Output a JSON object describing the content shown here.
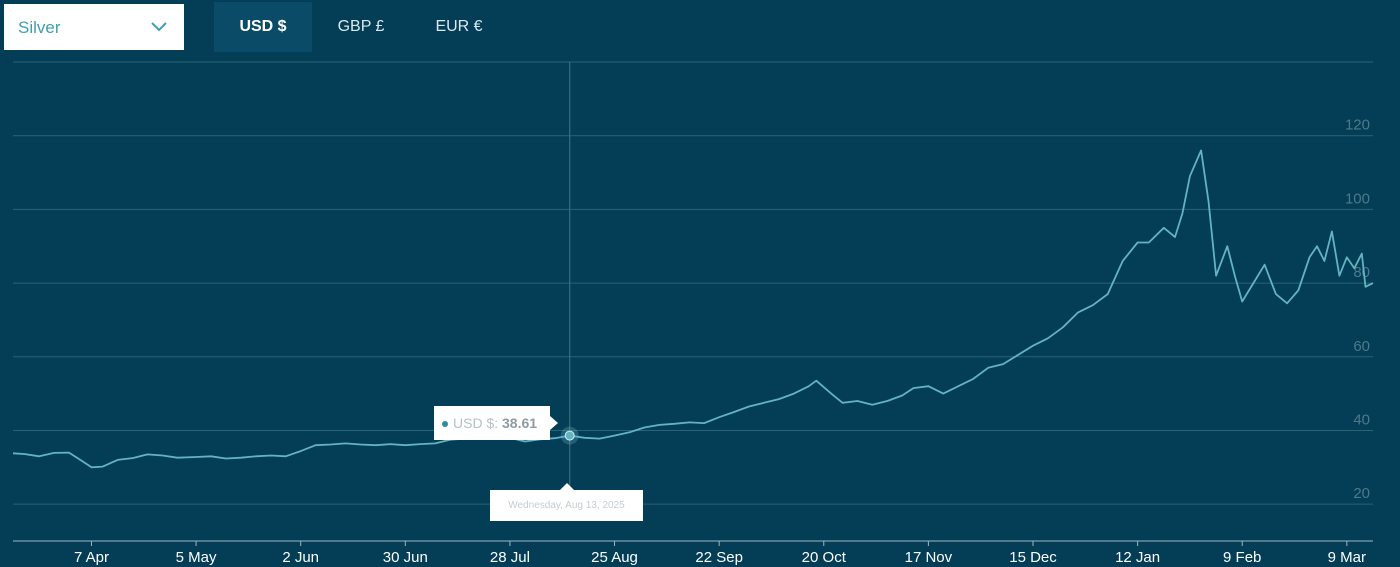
{
  "controls": {
    "metal_select": {
      "value": "Silver"
    },
    "currency_tabs": [
      {
        "label": "USD $",
        "active": true
      },
      {
        "label": "GBP £",
        "active": false
      },
      {
        "label": "EUR €",
        "active": false
      }
    ]
  },
  "tooltip": {
    "series_label": "USD $:",
    "value": "38.61",
    "date": "Wednesday, Aug 13, 2025"
  },
  "colors": {
    "background": "#033d56",
    "line": "#63b3c1",
    "grid": "#2a6378",
    "axis_text": "#ffffff",
    "y_tick_text": "#4d7a8a",
    "crosshair": "#3d6b7e"
  },
  "chart_data": {
    "type": "line",
    "title": "",
    "xlabel": "",
    "ylabel": "",
    "ylim": [
      10,
      140
    ],
    "yticks": [
      20,
      40,
      60,
      80,
      100,
      120
    ],
    "x_start_date": "2025-03-17",
    "x_end_date": "2026-03-16",
    "x_tick_labels": [
      {
        "label": "7 Apr",
        "date": "2025-04-07"
      },
      {
        "label": "5 May",
        "date": "2025-05-05"
      },
      {
        "label": "2 Jun",
        "date": "2025-06-02"
      },
      {
        "label": "30 Jun",
        "date": "2025-06-30"
      },
      {
        "label": "28 Jul",
        "date": "2025-07-28"
      },
      {
        "label": "25 Aug",
        "date": "2025-08-25"
      },
      {
        "label": "22 Sep",
        "date": "2025-09-22"
      },
      {
        "label": "20 Oct",
        "date": "2025-10-20"
      },
      {
        "label": "17 Nov",
        "date": "2025-11-17"
      },
      {
        "label": "15 Dec",
        "date": "2025-12-15"
      },
      {
        "label": "12 Jan",
        "date": "2026-01-12"
      },
      {
        "label": "9 Feb",
        "date": "2026-02-09"
      },
      {
        "label": "9 Mar",
        "date": "2026-03-09"
      }
    ],
    "grid": true,
    "highlight": {
      "date": "2025-08-13",
      "value": 38.61
    },
    "series": [
      {
        "name": "USD $",
        "points": [
          [
            "2025-03-17",
            33.8
          ],
          [
            "2025-03-20",
            33.6
          ],
          [
            "2025-03-24",
            33.0
          ],
          [
            "2025-03-28",
            33.9
          ],
          [
            "2025-04-01",
            34.0
          ],
          [
            "2025-04-04",
            32.0
          ],
          [
            "2025-04-07",
            30.0
          ],
          [
            "2025-04-10",
            30.2
          ],
          [
            "2025-04-14",
            32.0
          ],
          [
            "2025-04-18",
            32.5
          ],
          [
            "2025-04-22",
            33.5
          ],
          [
            "2025-04-26",
            33.2
          ],
          [
            "2025-04-30",
            32.6
          ],
          [
            "2025-05-05",
            32.8
          ],
          [
            "2025-05-09",
            33.0
          ],
          [
            "2025-05-13",
            32.4
          ],
          [
            "2025-05-17",
            32.6
          ],
          [
            "2025-05-21",
            33.0
          ],
          [
            "2025-05-25",
            33.2
          ],
          [
            "2025-05-29",
            33.0
          ],
          [
            "2025-06-02",
            34.4
          ],
          [
            "2025-06-06",
            36.0
          ],
          [
            "2025-06-10",
            36.2
          ],
          [
            "2025-06-14",
            36.5
          ],
          [
            "2025-06-18",
            36.2
          ],
          [
            "2025-06-22",
            36.0
          ],
          [
            "2025-06-26",
            36.3
          ],
          [
            "2025-06-30",
            36.0
          ],
          [
            "2025-07-04",
            36.3
          ],
          [
            "2025-07-08",
            36.5
          ],
          [
            "2025-07-12",
            37.5
          ],
          [
            "2025-07-16",
            37.8
          ],
          [
            "2025-07-20",
            38.0
          ],
          [
            "2025-07-24",
            38.4
          ],
          [
            "2025-07-28",
            38.0
          ],
          [
            "2025-08-01",
            37.0
          ],
          [
            "2025-08-05",
            37.6
          ],
          [
            "2025-08-09",
            37.9
          ],
          [
            "2025-08-13",
            38.61
          ],
          [
            "2025-08-17",
            38.0
          ],
          [
            "2025-08-21",
            37.8
          ],
          [
            "2025-08-25",
            38.6
          ],
          [
            "2025-08-29",
            39.5
          ],
          [
            "2025-09-02",
            40.8
          ],
          [
            "2025-09-06",
            41.5
          ],
          [
            "2025-09-10",
            41.8
          ],
          [
            "2025-09-14",
            42.2
          ],
          [
            "2025-09-18",
            42.0
          ],
          [
            "2025-09-22",
            43.6
          ],
          [
            "2025-09-26",
            45.0
          ],
          [
            "2025-09-30",
            46.5
          ],
          [
            "2025-10-04",
            47.5
          ],
          [
            "2025-10-08",
            48.5
          ],
          [
            "2025-10-12",
            50.0
          ],
          [
            "2025-10-16",
            52.0
          ],
          [
            "2025-10-18",
            53.5
          ],
          [
            "2025-10-22",
            50.0
          ],
          [
            "2025-10-25",
            47.5
          ],
          [
            "2025-10-29",
            48.0
          ],
          [
            "2025-11-02",
            47.0
          ],
          [
            "2025-11-06",
            48.0
          ],
          [
            "2025-11-10",
            49.5
          ],
          [
            "2025-11-13",
            51.5
          ],
          [
            "2025-11-17",
            52.0
          ],
          [
            "2025-11-21",
            50.0
          ],
          [
            "2025-11-25",
            52.0
          ],
          [
            "2025-11-29",
            54.0
          ],
          [
            "2025-12-03",
            57.0
          ],
          [
            "2025-12-07",
            58.0
          ],
          [
            "2025-12-11",
            60.5
          ],
          [
            "2025-12-15",
            63.0
          ],
          [
            "2025-12-19",
            65.0
          ],
          [
            "2025-12-23",
            68.0
          ],
          [
            "2025-12-27",
            72.0
          ],
          [
            "2025-12-31",
            74.0
          ],
          [
            "2026-01-04",
            77.0
          ],
          [
            "2026-01-08",
            86.0
          ],
          [
            "2026-01-12",
            91.0
          ],
          [
            "2026-01-15",
            91.0
          ],
          [
            "2026-01-19",
            95.0
          ],
          [
            "2026-01-22",
            92.5
          ],
          [
            "2026-01-24",
            99.0
          ],
          [
            "2026-01-26",
            109.0
          ],
          [
            "2026-01-29",
            116.0
          ],
          [
            "2026-01-31",
            102.0
          ],
          [
            "2026-02-02",
            82.0
          ],
          [
            "2026-02-05",
            90.0
          ],
          [
            "2026-02-07",
            82.0
          ],
          [
            "2026-02-09",
            75.0
          ],
          [
            "2026-02-12",
            80.0
          ],
          [
            "2026-02-15",
            85.0
          ],
          [
            "2026-02-18",
            77.0
          ],
          [
            "2026-02-21",
            74.5
          ],
          [
            "2026-02-24",
            78.0
          ],
          [
            "2026-02-27",
            87.0
          ],
          [
            "2026-03-01",
            90.0
          ],
          [
            "2026-03-03",
            86.0
          ],
          [
            "2026-03-05",
            94.0
          ],
          [
            "2026-03-07",
            82.0
          ],
          [
            "2026-03-09",
            87.0
          ],
          [
            "2026-03-11",
            84.0
          ],
          [
            "2026-03-13",
            88.0
          ],
          [
            "2026-03-14",
            79.0
          ],
          [
            "2026-03-16",
            80.0
          ]
        ]
      }
    ]
  }
}
